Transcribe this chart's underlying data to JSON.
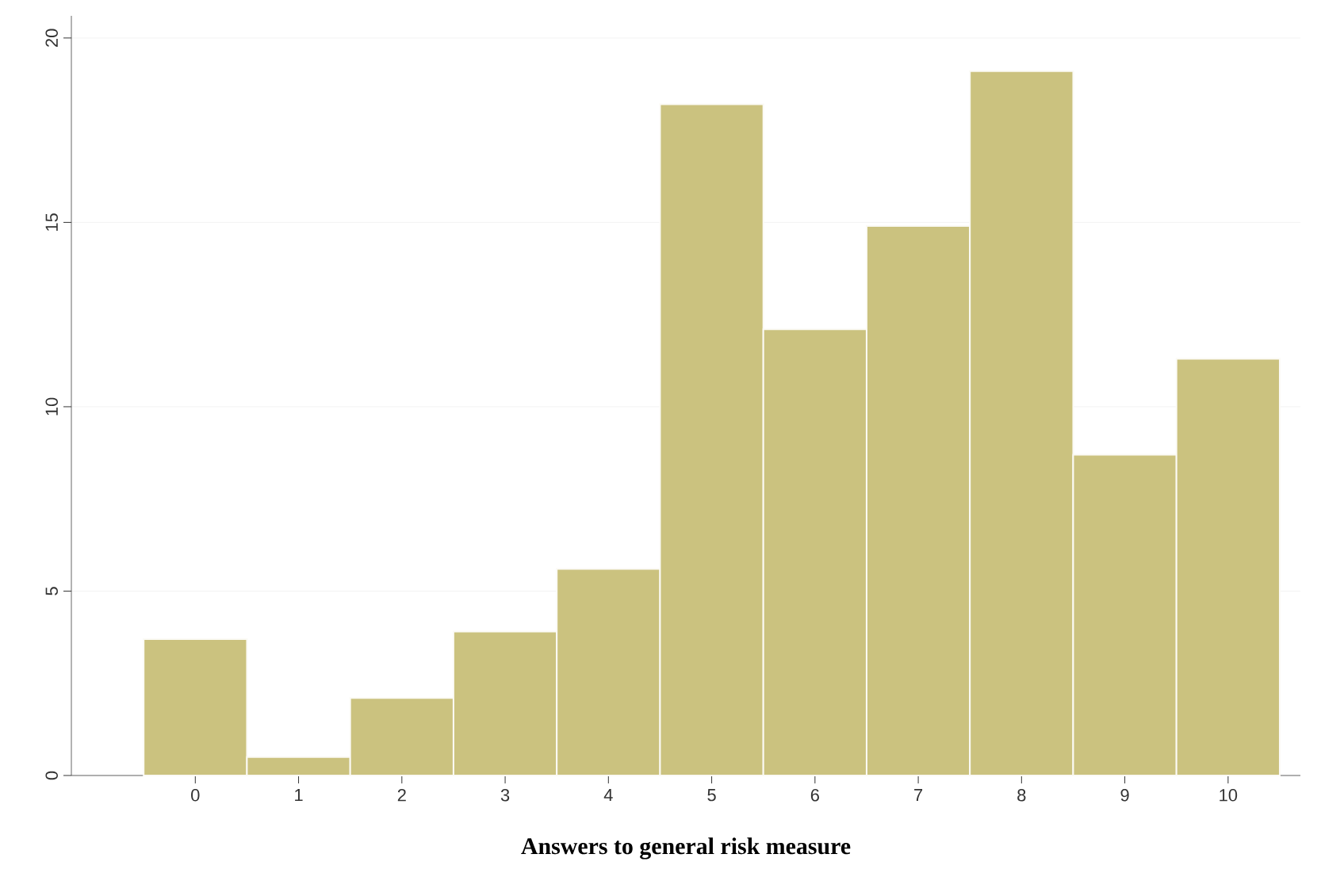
{
  "chart_data": {
    "type": "histogram",
    "xlabel": "Answers to general risk measure",
    "bins": [
      -0.5,
      0.5,
      1.5,
      2.5,
      3.5,
      4.5,
      5.5,
      6.5,
      7.5,
      8.5,
      9.5,
      10.5
    ],
    "values": [
      3.7,
      0.5,
      2.1,
      3.9,
      5.6,
      18.2,
      12.1,
      14.9,
      19.1,
      8.7,
      11.3
    ],
    "color": "#cbc27f",
    "xlim": [
      -1.2,
      10.7
    ],
    "ylim": [
      0,
      20.6
    ],
    "xticks": [
      0,
      1,
      2,
      3,
      4,
      5,
      6,
      7,
      8,
      9,
      10
    ],
    "yticks": [
      0,
      5,
      10,
      15,
      20
    ],
    "grid": "y"
  }
}
